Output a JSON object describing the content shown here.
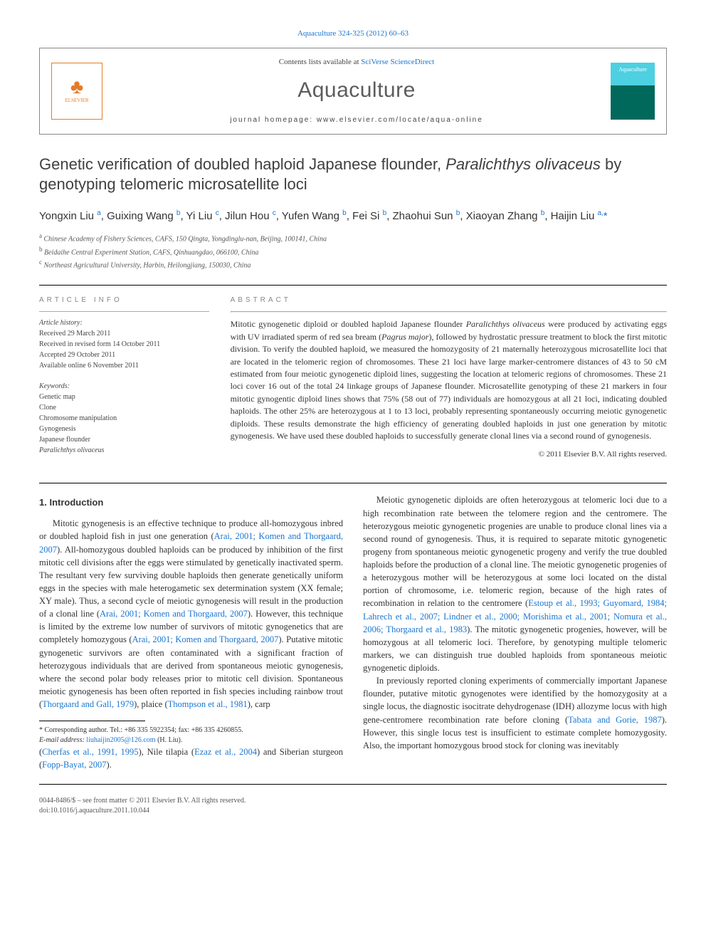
{
  "top_link": {
    "journal": "Aquaculture",
    "vol_pages": "324-325 (2012) 60–63",
    "href_label": "Aquaculture 324-325 (2012) 60–63"
  },
  "header": {
    "contents_prefix": "Contents lists available at ",
    "contents_link": "SciVerse ScienceDirect",
    "journal_title": "Aquaculture",
    "homepage_label": "journal homepage: www.elsevier.com/locate/aqua-online",
    "elsevier_label": "ELSEVIER",
    "cover_label": "Aquaculture"
  },
  "article": {
    "title_html": "Genetic verification of doubled haploid Japanese flounder, <em>Paralichthys olivaceus</em> by genotyping telomeric microsatellite loci",
    "authors_html": "Yongxin Liu <sup>a</sup>, Guixing Wang <sup>b</sup>, Yi Liu <sup>c</sup>, Jilun Hou <sup>c</sup>, Yufen Wang <sup>b</sup>, Fei Si <sup>b</sup>, Zhaohui Sun <sup>b</sup>, Xiaoyan Zhang <sup>b</sup>, Haijin Liu <sup class=\"corr\">a,</sup><span class=\"corr\">*</span>",
    "affiliations": [
      {
        "sup": "a",
        "text": "Chinese Academy of Fishery Sciences, CAFS, 150 Qingta, Yongdinglu-nan, Beijing, 100141, China"
      },
      {
        "sup": "b",
        "text": "Beidaihe Central Experiment Station, CAFS, Qinhuangdao, 066100, China"
      },
      {
        "sup": "c",
        "text": "Northeast Agricultural University, Harbin, Heilongjiang, 150030, China"
      }
    ]
  },
  "article_info": {
    "heading": "article info",
    "history_label": "Article history:",
    "history": [
      "Received 29 March 2011",
      "Received in revised form 14 October 2011",
      "Accepted 29 October 2011",
      "Available online 6 November 2011"
    ],
    "keywords_label": "Keywords:",
    "keywords": [
      "Genetic map",
      "Clone",
      "Chromosome manipulation",
      "Gynogenesis",
      "Japanese flounder",
      "Paralichthys olivaceus"
    ]
  },
  "abstract": {
    "heading": "abstract",
    "text_html": "Mitotic gynogenetic diploid or doubled haploid Japanese flounder <em>Paralichthys olivaceus</em> were produced by activating eggs with UV irradiated sperm of red sea bream (<em>Pagrus major</em>), followed by hydrostatic pressure treatment to block the first mitotic division. To verify the doubled haploid, we measured the homozygosity of 21 maternally heterozygous microsatellite loci that are located in the telomeric region of chromosomes. These 21 loci have large marker-centromere distances of 43 to 50 cM estimated from four meiotic gynogenetic diploid lines, suggesting the location at telomeric regions of chromosomes. These 21 loci cover 16 out of the total 24 linkage groups of Japanese flounder. Microsatellite genotyping of these 21 markers in four mitotic gynogentic diploid lines shows that 75% (58 out of 77) individuals are homozygous at all 21 loci, indicating doubled haploids. The other 25% are heterozygous at 1 to 13 loci, probably representing spontaneously occurring meiotic gynogenetic diploids. These results demonstrate the high efficiency of generating doubled haploids in just one generation by mitotic gynogenesis. We have used these doubled haploids to successfully generate clonal lines via a second round of gynogenesis.",
    "copyright": "© 2011 Elsevier B.V. All rights reserved."
  },
  "body": {
    "section_heading": "1. Introduction",
    "col1": [
      "Mitotic gynogenesis is an effective technique to produce all-homozygous inbred or doubled haploid fish in just one generation (<a href=\"#\">Arai, 2001; Komen and Thorgaard, 2007</a>). All-homozygous doubled haploids can be produced by inhibition of the first mitotic cell divisions after the eggs were stimulated by genetically inactivated sperm. The resultant very few surviving double haploids then generate genetically uniform eggs in the species with male heterogametic sex determination system (XX female; XY male). Thus, a second cycle of meiotic gynogenesis  will result in the production of a clonal line (<a href=\"#\">Arai, 2001; Komen and Thorgaard, 2007</a>). However, this technique is limited by the extreme low number of survivors of mitotic gynogenetics that are completely homozygous (<a href=\"#\">Arai, 2001; Komen and Thorgaard, 2007</a>). Putative mitotic gynogenetic survivors are often contaminated with a significant fraction of heterozygous individuals that are derived from spontaneous meiotic gynogenesis, where the second polar body releases prior to mitotic cell division. Spontaneous meiotic gynogenesis has been often reported in fish species including rainbow trout (<a href=\"#\">Thorgaard and Gall, 1979</a>), plaice (<a href=\"#\">Thompson et al., 1981</a>), carp"
    ],
    "col2": [
      "(<a href=\"#\">Cherfas et al., 1991, 1995</a>), Nile tilapia (<a href=\"#\">Ezaz et al., 2004</a>) and Siberian sturgeon (<a href=\"#\">Fopp-Bayat, 2007</a>).",
      "Meiotic gynogenetic diploids are often heterozygous at telomeric loci due to a high recombination rate between the telomere region and the centromere. The heterozygous meiotic gynogenetic progenies are unable to produce clonal lines via a second round of gynogenesis. Thus, it is required to separate mitotic gynogenetic progeny from spontaneous meiotic gynogenetic progeny and verify the true doubled haploids before the production of a clonal line. The meiotic gynogenetic progenies of a heterozygous mother will be heterozygous at some loci located on the distal portion of chromosome, i.e. telomeric region, because of the high rates of recombination in relation to the centromere (<a href=\"#\">Estoup et al., 1993; Guyomard, 1984; Lahrech et al., 2007; Lindner et al., 2000; Morishima et al., 2001; Nomura et al., 2006; Thorgaard et al., 1983</a>). The mitotic gynogenetic progenies, however, will be homozygous at all telomeric loci. Therefore, by genotyping multiple telomeric markers, we can distinguish true doubled haploids from spontaneous meiotic gynogenetic diploids.",
      "In previously reported cloning experiments of commercially important Japanese flounder, putative mitotic gynogenotes were identified  by the homozygosity at a single locus, the diagnostic isocitrate dehydrogenase (IDH) allozyme locus with high gene-centromere recombination rate before cloning (<a href=\"#\">Tabata and Gorie, 1987</a>). However, this single locus test is insufficient to estimate complete homozygosity. Also, the important homozygous brood stock for cloning was inevitably"
    ]
  },
  "footnote": {
    "corr_label": "* Corresponding author. Tel.: +86 335 5922354; fax: +86 335 4260855.",
    "email_label": "E-mail address:",
    "email": "liuhaijin2005@126.com",
    "email_suffix": "(H. Liu)."
  },
  "bottom": {
    "issn_line": "0044-8486/$ – see front matter © 2011 Elsevier B.V. All rights reserved.",
    "doi_line": "doi:10.1016/j.aquaculture.2011.10.044"
  }
}
